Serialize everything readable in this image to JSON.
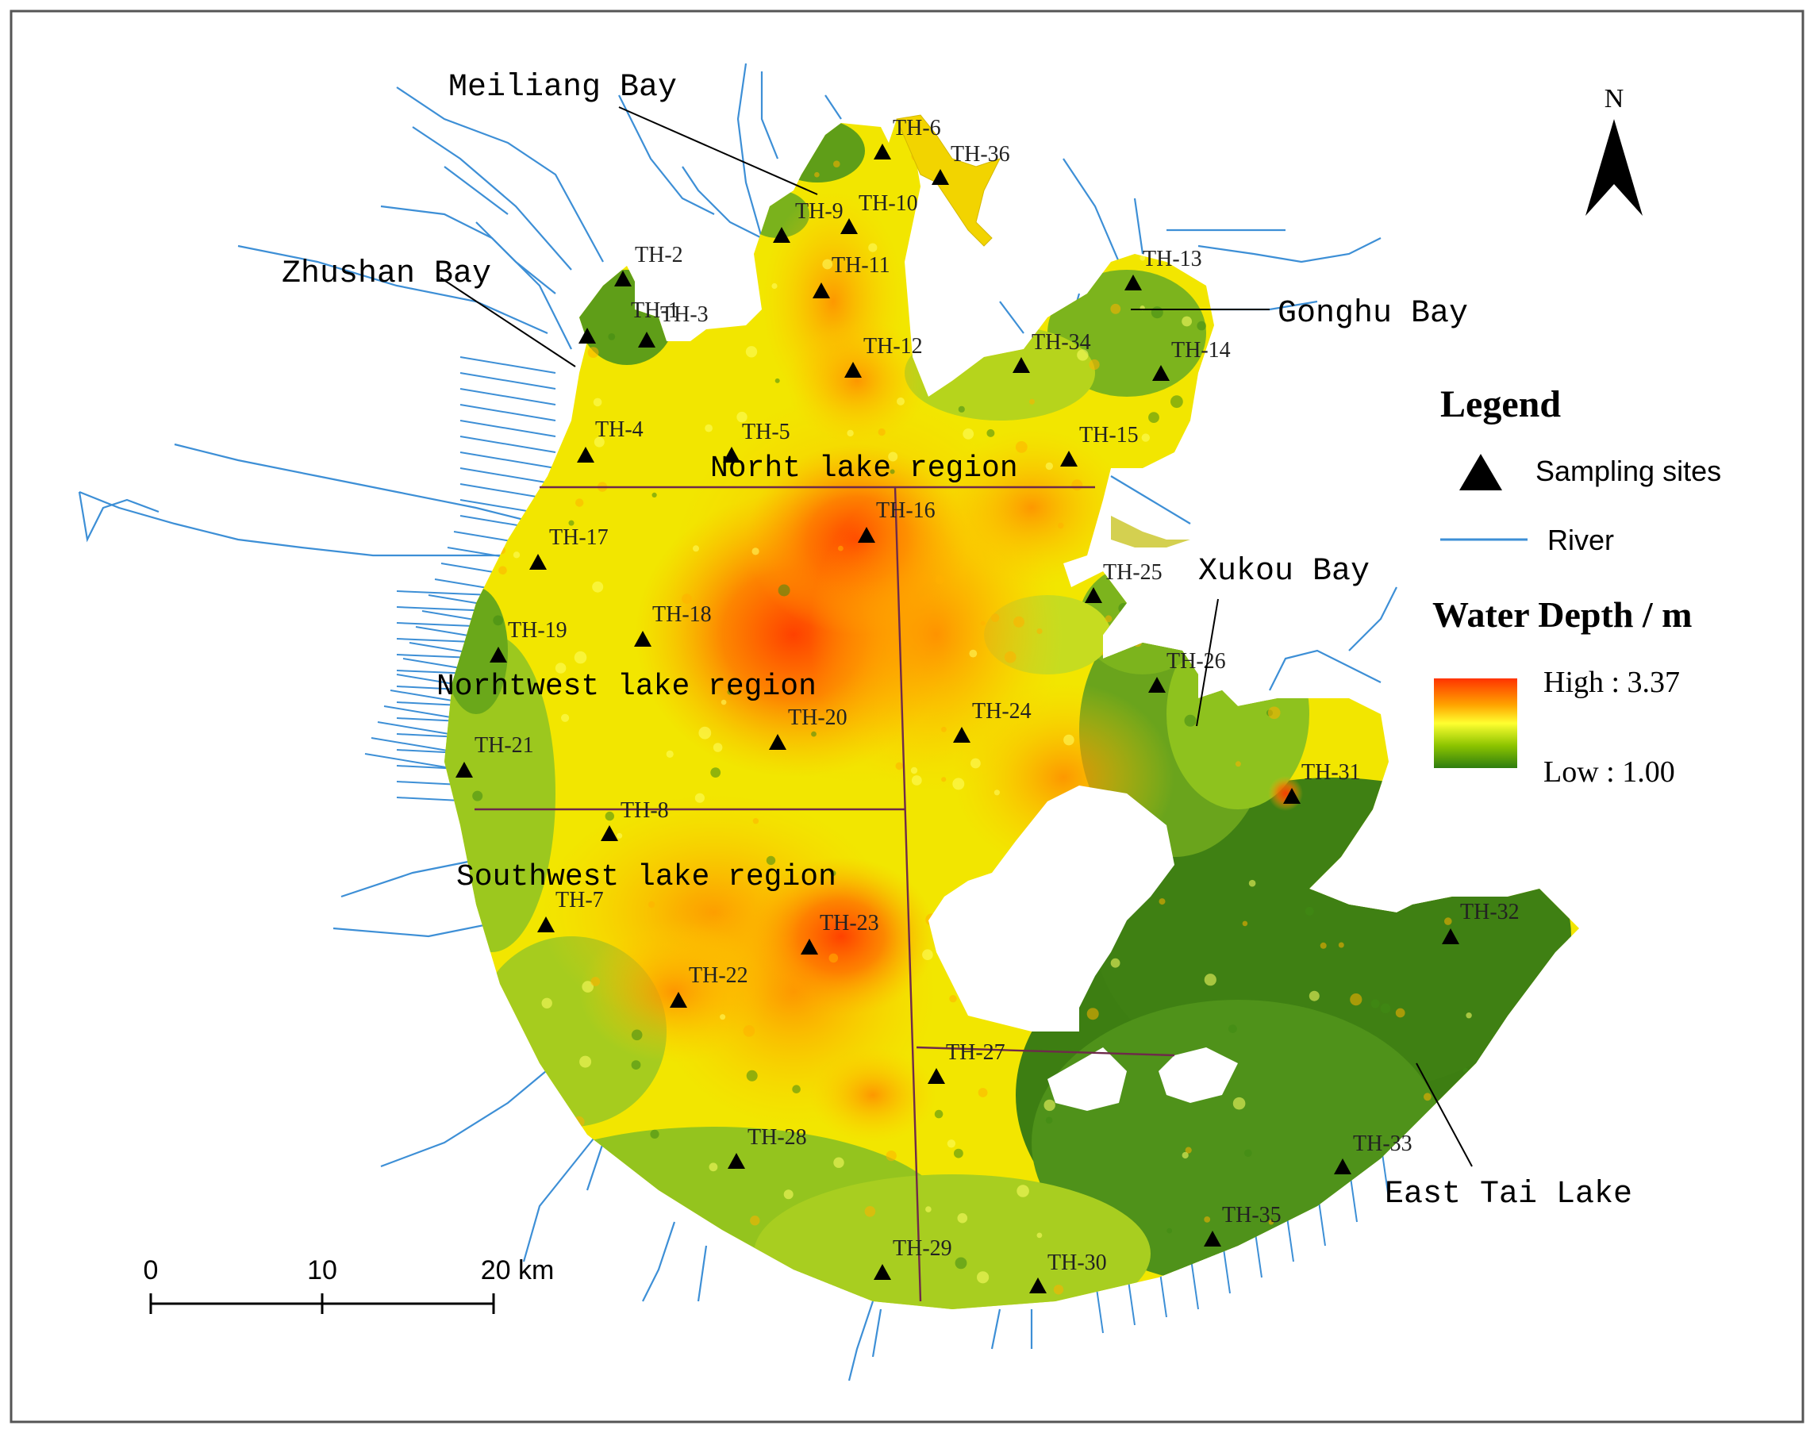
{
  "sites": [
    {
      "id": "TH-1"
    },
    {
      "id": "TH-2"
    },
    {
      "id": "TH-3"
    },
    {
      "id": "TH-4"
    },
    {
      "id": "TH-5"
    },
    {
      "id": "TH-6"
    },
    {
      "id": "TH-7"
    },
    {
      "id": "TH-8"
    },
    {
      "id": "TH-9"
    },
    {
      "id": "TH-10"
    },
    {
      "id": "TH-11"
    },
    {
      "id": "TH-12"
    },
    {
      "id": "TH-13"
    },
    {
      "id": "TH-14"
    },
    {
      "id": "TH-15"
    },
    {
      "id": "TH-16"
    },
    {
      "id": "TH-17"
    },
    {
      "id": "TH-18"
    },
    {
      "id": "TH-19"
    },
    {
      "id": "TH-20"
    },
    {
      "id": "TH-21"
    },
    {
      "id": "TH-22"
    },
    {
      "id": "TH-23"
    },
    {
      "id": "TH-24"
    },
    {
      "id": "TH-25"
    },
    {
      "id": "TH-26"
    },
    {
      "id": "TH-27"
    },
    {
      "id": "TH-28"
    },
    {
      "id": "TH-29"
    },
    {
      "id": "TH-30"
    },
    {
      "id": "TH-31"
    },
    {
      "id": "TH-32"
    },
    {
      "id": "TH-33"
    },
    {
      "id": "TH-34"
    },
    {
      "id": "TH-35"
    },
    {
      "id": "TH-36"
    }
  ],
  "bays": {
    "meiliang": "Meiliang  Bay",
    "zhushan": "Zhushan  Bay",
    "gonghu": "Gonghu Bay",
    "xukou": "Xukou Bay",
    "east": "East Tai Lake"
  },
  "regions": {
    "north": "Norht lake region",
    "northwest": "Norhtwest lake region",
    "southwest": "Southwest lake region"
  },
  "legend": {
    "title": "Legend",
    "sites": "Sampling sites",
    "river": "River",
    "depth_title": "Water Depth / m",
    "high": "High : 3.37",
    "low": "Low : 1.00",
    "high_color": "#ff3300",
    "mid_color": "#ffff00",
    "low_color": "#2e7d0f"
  },
  "north_arrow": "N",
  "scale_bar": {
    "t0": "0",
    "t1": "10",
    "t2": "20 km"
  },
  "colors": {
    "river": "#3d8fd6",
    "boundary": "#6e2a4a"
  }
}
